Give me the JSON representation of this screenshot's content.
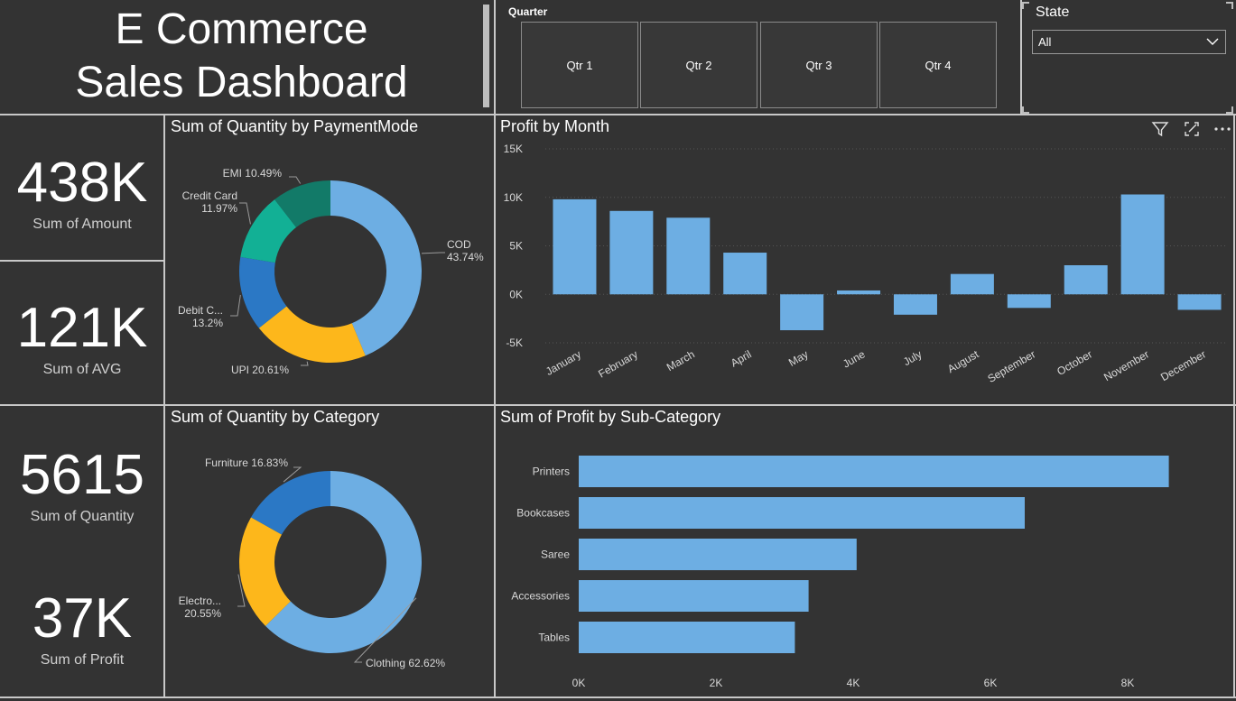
{
  "header": {
    "title_line1": "E Commerce",
    "title_line2": "Sales Dashboard"
  },
  "quarter_slicer": {
    "label": "Quarter",
    "options": [
      "Qtr 1",
      "Qtr 2",
      "Qtr 3",
      "Qtr 4"
    ]
  },
  "state_slicer": {
    "label": "State",
    "selected": "All"
  },
  "kpis": {
    "amount": {
      "value": "438K",
      "label": "Sum of Amount"
    },
    "avg": {
      "value": "121K",
      "label": "Sum of AVG"
    },
    "quantity": {
      "value": "5615",
      "label": "Sum of Quantity"
    },
    "profit": {
      "value": "37K",
      "label": "Sum of Profit"
    }
  },
  "visual_icons": [
    "filter-icon",
    "focus-mode-icon",
    "more-options-icon"
  ],
  "colors": {
    "bar": "#6daee3",
    "cod": "#6daee3",
    "upi": "#fdb71b",
    "debit": "#2b78c5",
    "credit": "#12b095",
    "emi": "#127a68"
  },
  "chart_data": [
    {
      "type": "pie",
      "title": "Sum of Quantity by PaymentMode",
      "categories": [
        "COD",
        "UPI",
        "Debit C...",
        "Credit Card",
        "EMI"
      ],
      "values": [
        43.74,
        20.61,
        13.2,
        11.97,
        10.49
      ],
      "labels": [
        "COD 43.74%",
        "UPI 20.61%",
        "Debit C... 13.2%",
        "Credit Card 11.97%",
        "EMI 10.49%"
      ]
    },
    {
      "type": "bar",
      "title": "Profit by Month",
      "categories": [
        "January",
        "February",
        "March",
        "April",
        "May",
        "June",
        "July",
        "August",
        "September",
        "October",
        "November",
        "December"
      ],
      "values": [
        9800,
        8600,
        7900,
        4300,
        -3700,
        400,
        -2100,
        2100,
        -1400,
        3000,
        10300,
        -1600
      ],
      "ylim": [
        -5000,
        15000
      ],
      "yticks": [
        "15K",
        "10K",
        "5K",
        "0K",
        "-5K"
      ],
      "grid": true
    },
    {
      "type": "pie",
      "title": "Sum of Quantity by Category",
      "categories": [
        "Clothing",
        "Electro...",
        "Furniture"
      ],
      "values": [
        62.62,
        20.55,
        16.83
      ],
      "labels": [
        "Clothing 62.62%",
        "Electro... 20.55%",
        "Furniture 16.83%"
      ]
    },
    {
      "type": "bar",
      "orientation": "horizontal",
      "title": "Sum of Profit by Sub-Category",
      "categories": [
        "Printers",
        "Bookcases",
        "Saree",
        "Accessories",
        "Tables"
      ],
      "values": [
        8600,
        6500,
        4050,
        3350,
        3150
      ],
      "xlim": [
        0,
        9000
      ],
      "xticks": [
        "0K",
        "2K",
        "4K",
        "6K",
        "8K"
      ]
    }
  ]
}
